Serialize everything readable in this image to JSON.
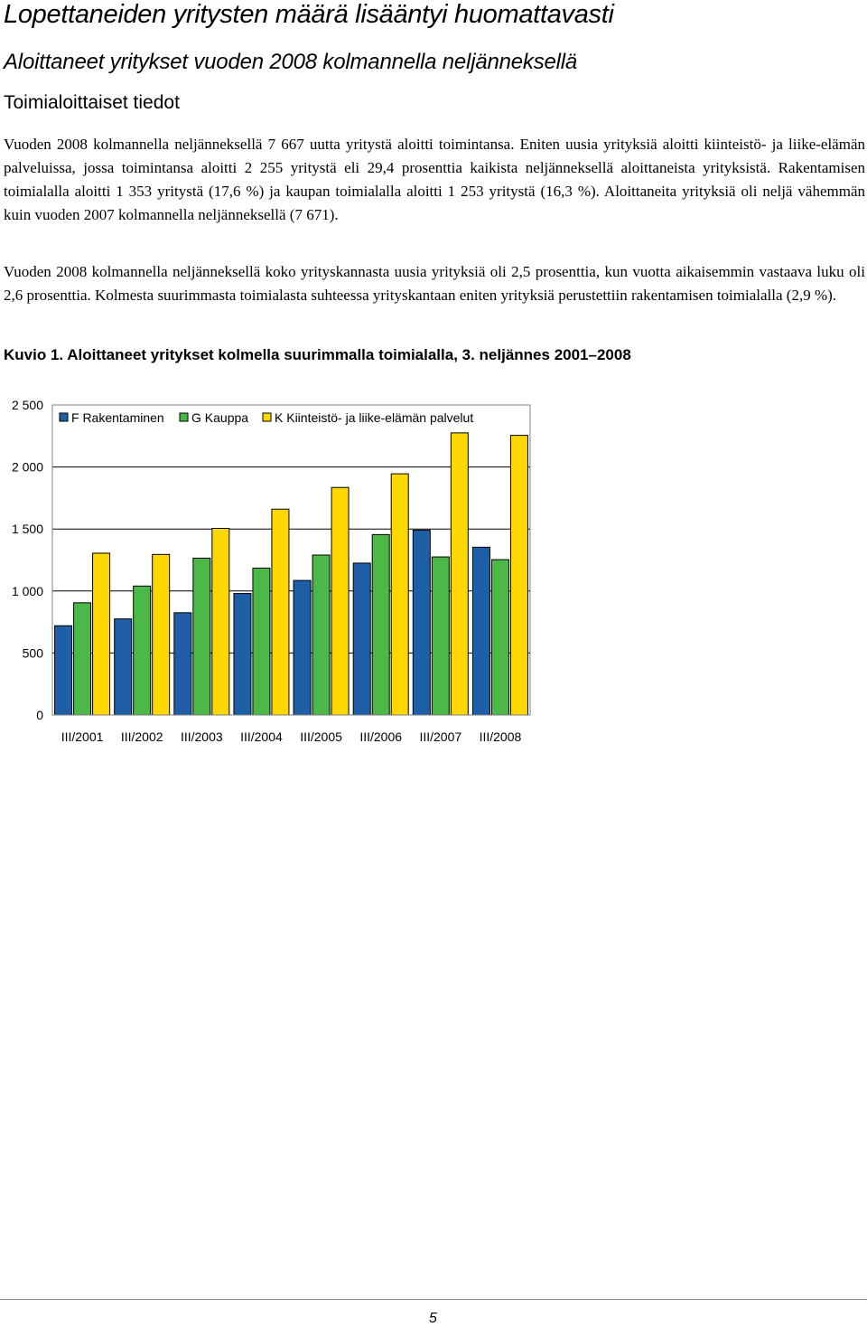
{
  "heading": "Lopettaneiden yritysten määrä lisääntyi huomattavasti",
  "subheading": "Aloittaneet yritykset vuoden 2008 kolmannella neljänneksellä",
  "section_heading": "Toimialoittaiset tiedot",
  "paragraphs": [
    "Vuoden 2008 kolmannella neljänneksellä 7 667 uutta yritystä aloitti toimintansa. Eniten uusia yrityksiä aloitti kiinteistö- ja liike-elämän palveluissa, jossa toimintansa aloitti 2 255 yritystä eli 29,4 prosenttia kaikista neljänneksellä aloittaneista yrityksistä. Rakentamisen toimialalla aloitti 1 353 yritystä (17,6 %) ja kaupan toimialalla aloitti 1 253 yritystä (16,3 %). Aloittaneita yrityksiä oli neljä vähemmän kuin vuoden 2007 kolmannella neljänneksellä (7 671).",
    "Vuoden 2008 kolmannella neljänneksellä koko yrityskannasta uusia yrityksiä oli 2,5 prosenttia, kun vuotta aikaisemmin vastaava luku oli 2,6 prosenttia. Kolmesta suurimmasta toimialasta suhteessa yrityskantaan eniten yrityksiä perustettiin rakentamisen toimialalla (2,9 %)."
  ],
  "figure_caption": "Kuvio 1. Aloittaneet yritykset kolmella suurimmalla toimialalla, 3. neljännes 2001–2008",
  "page_number": "5",
  "chart_data": {
    "type": "bar",
    "categories": [
      "III/2001",
      "III/2002",
      "III/2003",
      "III/2004",
      "III/2005",
      "III/2006",
      "III/2007",
      "III/2008"
    ],
    "series": [
      {
        "name": "F Rakentaminen",
        "color": "#1f5fa8",
        "values": [
          720,
          775,
          825,
          980,
          1085,
          1225,
          1490,
          1353
        ]
      },
      {
        "name": "G Kauppa",
        "color": "#4cb848",
        "values": [
          905,
          1040,
          1265,
          1185,
          1290,
          1455,
          1275,
          1253
        ]
      },
      {
        "name": "K Kiinteistö- ja liike-elämän palvelut",
        "color": "#ffd700",
        "values": [
          1305,
          1295,
          1505,
          1660,
          1835,
          1945,
          2275,
          2255
        ]
      }
    ],
    "yticks": [
      "0",
      "500",
      "1 000",
      "1 500",
      "2 000",
      "2 500"
    ],
    "ylim": [
      0,
      2500
    ],
    "grid": true,
    "legend_position": "top-left"
  }
}
